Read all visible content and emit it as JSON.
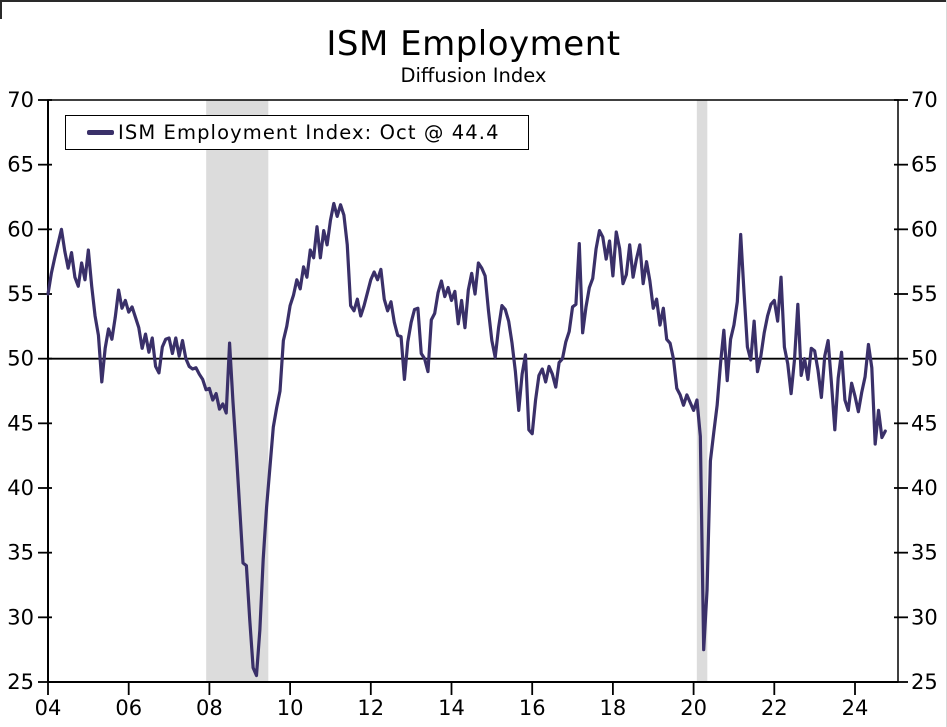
{
  "header": {
    "title": "ISM Employment",
    "subtitle": "Diffusion Index"
  },
  "legend": {
    "label": "ISM Employment Index: Oct @ 44.4",
    "swatch_color": "#3a3069"
  },
  "axes": {
    "y_ticks": [
      25,
      30,
      35,
      40,
      45,
      50,
      55,
      60,
      65,
      70
    ],
    "x_ticks": [
      {
        "year": 2004,
        "label": "04"
      },
      {
        "year": 2006,
        "label": "06"
      },
      {
        "year": 2008,
        "label": "08"
      },
      {
        "year": 2010,
        "label": "10"
      },
      {
        "year": 2012,
        "label": "12"
      },
      {
        "year": 2014,
        "label": "14"
      },
      {
        "year": 2016,
        "label": "16"
      },
      {
        "year": 2018,
        "label": "18"
      },
      {
        "year": 2020,
        "label": "20"
      },
      {
        "year": 2022,
        "label": "22"
      },
      {
        "year": 2024,
        "label": "24"
      }
    ]
  },
  "chart_data": {
    "type": "line",
    "title": "ISM Employment",
    "subtitle": "Diffusion Index",
    "ylim": [
      25,
      70
    ],
    "x_range_years": [
      2004.0,
      2025.07
    ],
    "grid": false,
    "reference_line_y": 50,
    "legend_position": "top-left",
    "line_color": "#3a3069",
    "recession_band_color": "#dcdcdc",
    "recession_bands": [
      {
        "from_year": 2007.92,
        "to_year": 2009.46
      },
      {
        "from_year": 2020.08,
        "to_year": 2020.34
      }
    ],
    "series": [
      {
        "name": "ISM Employment Index",
        "latest_point_label": "Oct @ 44.4",
        "start_month": "2004-01",
        "end_month": "2024-10",
        "frequency": "monthly",
        "values": [
          55.0,
          56.6,
          57.8,
          58.9,
          60.0,
          58.3,
          57.0,
          58.2,
          56.3,
          55.6,
          57.4,
          56.1,
          58.4,
          55.6,
          53.3,
          51.8,
          48.2,
          50.8,
          52.3,
          51.5,
          53.2,
          55.3,
          53.9,
          54.5,
          53.6,
          54.0,
          53.2,
          52.4,
          50.8,
          51.9,
          50.5,
          51.6,
          49.4,
          48.9,
          50.9,
          51.5,
          51.6,
          50.4,
          51.6,
          50.2,
          51.4,
          50.0,
          49.4,
          49.2,
          49.3,
          48.8,
          48.4,
          47.6,
          47.7,
          46.8,
          47.3,
          46.1,
          46.5,
          45.8,
          51.2,
          46.7,
          42.8,
          38.5,
          34.2,
          34.0,
          29.8,
          26.1,
          25.5,
          29.0,
          34.5,
          38.5,
          41.6,
          44.7,
          46.2,
          47.5,
          51.4,
          52.5,
          54.1,
          54.9,
          56.1,
          55.4,
          57.1,
          56.3,
          58.4,
          57.8,
          60.2,
          57.8,
          59.9,
          58.8,
          60.7,
          62.0,
          61.0,
          61.9,
          61.1,
          58.8,
          54.1,
          53.7,
          54.6,
          53.3,
          54.1,
          55.1,
          56.1,
          56.7,
          56.1,
          56.9,
          54.6,
          53.7,
          54.4,
          52.8,
          51.8,
          51.7,
          48.4,
          51.3,
          52.8,
          53.8,
          53.9,
          50.4,
          50.0,
          49.0,
          53.0,
          53.5,
          55.1,
          56.0,
          54.8,
          55.5,
          54.5,
          55.2,
          52.7,
          54.5,
          52.4,
          55.3,
          56.6,
          55.0,
          57.4,
          57.0,
          56.4,
          53.7,
          51.4,
          50.1,
          52.4,
          54.1,
          53.8,
          52.9,
          51.2,
          49.0,
          46.0,
          48.8,
          50.3,
          44.5,
          44.2,
          46.8,
          48.7,
          49.2,
          48.2,
          49.4,
          48.8,
          47.8,
          49.7,
          50.0,
          51.3,
          52.1,
          54.0,
          54.2,
          58.9,
          52.0,
          54.0,
          55.5,
          56.2,
          58.5,
          59.9,
          59.4,
          57.7,
          59.1,
          56.4,
          59.8,
          58.5,
          55.8,
          56.5,
          58.8,
          56.3,
          57.7,
          58.8,
          55.8,
          57.5,
          56.0,
          53.9,
          54.6,
          52.6,
          53.9,
          51.5,
          51.2,
          50.0,
          47.7,
          47.2,
          46.4,
          47.2,
          46.6,
          46.0,
          46.8,
          44.0,
          27.5,
          32.1,
          42.1,
          44.3,
          46.4,
          49.6,
          52.2,
          48.3,
          51.5,
          52.6,
          54.4,
          59.6,
          55.1,
          50.9,
          49.9,
          52.9,
          49.0,
          50.2,
          52.0,
          53.3,
          54.2,
          54.5,
          52.9,
          56.3,
          50.9,
          49.6,
          47.3,
          49.9,
          54.2,
          48.7,
          50.0,
          48.4,
          50.8,
          50.6,
          49.1,
          47.0,
          50.2,
          51.4,
          48.1,
          44.5,
          48.5,
          50.5,
          46.8,
          46.0,
          48.1,
          47.1,
          45.9,
          47.4,
          48.6,
          51.1,
          49.3,
          43.4,
          46.0,
          43.9,
          44.4
        ]
      }
    ]
  }
}
